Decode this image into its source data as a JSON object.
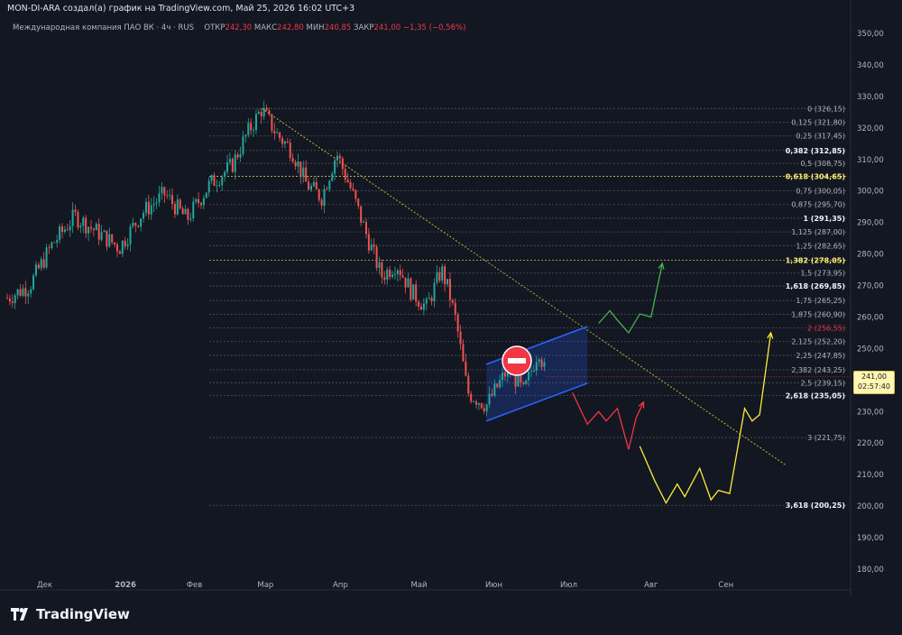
{
  "caption": "MON-DI-ARA создал(а) график на TradingView.com, Май 25, 2026 16:02 UTC+3",
  "legend": {
    "symbol": "Международная компания ПАО ВК · 4ч · RUS",
    "open_label": "ОТКР",
    "open": "242,30",
    "high_label": "МАКС",
    "high": "242,80",
    "low_label": "МИН",
    "low": "240,85",
    "close_label": "ЗАКР",
    "close": "241,00",
    "change": "−1,35 (−0,56%)"
  },
  "price_tag": {
    "price": "241,00",
    "timer": "02:57:40"
  },
  "brand": {
    "name": "TradingView"
  },
  "colors": {
    "background": "#131722",
    "up": "#26a69a",
    "down": "#ef5350",
    "fib": "#787b86",
    "fib_highlight": "#fff176",
    "channel": "#2962ff",
    "green_path": "#4caf50",
    "red_path": "#f23645",
    "yellow_path": "#ffeb3b",
    "trendline": "#b8b23a"
  },
  "chart_data": {
    "type": "candlestick",
    "y_axis": {
      "ticks": [
        "350,00",
        "340,00",
        "330,00",
        "320,00",
        "310,00",
        "300,00",
        "290,00",
        "280,00",
        "270,00",
        "260,00",
        "250,00",
        "240,00",
        "230,00",
        "220,00",
        "210,00",
        "200,00",
        "190,00",
        "180,00"
      ],
      "range": [
        175,
        352
      ]
    },
    "x_axis": {
      "ticks": [
        "Дек",
        "2026",
        "Фев",
        "Мар",
        "Апр",
        "Май",
        "Июн",
        "Июл",
        "Авг",
        "Сен"
      ]
    },
    "price_path": [
      {
        "t": 0.0,
        "p": 266
      },
      {
        "t": 0.3,
        "p": 270
      },
      {
        "t": 0.6,
        "p": 283
      },
      {
        "t": 0.9,
        "p": 292
      },
      {
        "t": 1.2,
        "p": 287
      },
      {
        "t": 1.5,
        "p": 282
      },
      {
        "t": 1.8,
        "p": 293
      },
      {
        "t": 2.1,
        "p": 299
      },
      {
        "t": 2.4,
        "p": 291
      },
      {
        "t": 2.7,
        "p": 302
      },
      {
        "t": 3.0,
        "p": 308
      },
      {
        "t": 3.2,
        "p": 318
      },
      {
        "t": 3.4,
        "p": 326
      },
      {
        "t": 3.6,
        "p": 318
      },
      {
        "t": 3.8,
        "p": 313
      },
      {
        "t": 4.0,
        "p": 302
      },
      {
        "t": 4.2,
        "p": 298
      },
      {
        "t": 4.4,
        "p": 312
      },
      {
        "t": 4.6,
        "p": 300
      },
      {
        "t": 4.8,
        "p": 286
      },
      {
        "t": 5.0,
        "p": 273
      },
      {
        "t": 5.2,
        "p": 277
      },
      {
        "t": 5.4,
        "p": 268
      },
      {
        "t": 5.6,
        "p": 263
      },
      {
        "t": 5.8,
        "p": 275
      },
      {
        "t": 5.9,
        "p": 268
      },
      {
        "t": 6.0,
        "p": 258
      },
      {
        "t": 6.15,
        "p": 236
      },
      {
        "t": 6.4,
        "p": 232
      },
      {
        "t": 6.7,
        "p": 244
      },
      {
        "t": 6.9,
        "p": 236
      },
      {
        "t": 7.1,
        "p": 250
      },
      {
        "t": 7.2,
        "p": 241
      }
    ],
    "fib_levels": [
      {
        "ratio": "0",
        "price": 326.15,
        "text": "0 (326,15)"
      },
      {
        "ratio": "0.125",
        "price": 321.8,
        "text": "0,125 (321,80)"
      },
      {
        "ratio": "0.25",
        "price": 317.45,
        "text": "0,25 (317,45)"
      },
      {
        "ratio": "0.382",
        "price": 312.85,
        "text": "0,382 (312,85)",
        "bold": true
      },
      {
        "ratio": "0.5",
        "price": 308.75,
        "text": "0,5 (308,75)"
      },
      {
        "ratio": "0.618",
        "price": 304.65,
        "text": "0,618 (304,65)",
        "highlight": true
      },
      {
        "ratio": "0.75",
        "price": 300.05,
        "text": "0,75 (300,05)"
      },
      {
        "ratio": "0.875",
        "price": 295.7,
        "text": "0,875 (295,70)"
      },
      {
        "ratio": "1",
        "price": 291.35,
        "text": "1 (291,35)",
        "bold": true
      },
      {
        "ratio": "1.125",
        "price": 287.0,
        "text": "1,125 (287,00)"
      },
      {
        "ratio": "1.25",
        "price": 282.65,
        "text": "1,25 (282,65)"
      },
      {
        "ratio": "1.382",
        "price": 278.05,
        "text": "1,382 (278,05)",
        "highlight": true
      },
      {
        "ratio": "1.5",
        "price": 273.95,
        "text": "1,5 (273,95)"
      },
      {
        "ratio": "1.618",
        "price": 269.85,
        "text": "1,618 (269,85)",
        "bold": true
      },
      {
        "ratio": "1.75",
        "price": 265.25,
        "text": "1,75 (265,25)"
      },
      {
        "ratio": "1.875",
        "price": 260.9,
        "text": "1,875 (260,90)"
      },
      {
        "ratio": "2",
        "price": 256.55,
        "text": "2 (256,55)",
        "red": true
      },
      {
        "ratio": "2.125",
        "price": 252.2,
        "text": "2,125 (252,20)"
      },
      {
        "ratio": "2.25",
        "price": 247.85,
        "text": "2,25 (247,85)"
      },
      {
        "ratio": "2.382",
        "price": 243.25,
        "text": "2,382 (243,25)"
      },
      {
        "ratio": "2.5",
        "price": 239.15,
        "text": "2,5 (239,15)"
      },
      {
        "ratio": "2.618",
        "price": 235.05,
        "text": "2,618 (235,05)",
        "bold": true
      },
      {
        "ratio": "3",
        "price": 221.75,
        "text": "3 (221,75)"
      },
      {
        "ratio": "3.618",
        "price": 200.25,
        "text": "3,618 (200,25)",
        "bold": true
      }
    ],
    "trendline": [
      {
        "t": 3.4,
        "p": 326.2
      },
      {
        "t": 10.4,
        "p": 213
      }
    ],
    "channel": {
      "top": [
        {
          "t": 6.4,
          "p": 245
        },
        {
          "t": 7.75,
          "p": 257
        }
      ],
      "bottom": [
        {
          "t": 6.4,
          "p": 227
        },
        {
          "t": 7.75,
          "p": 239
        }
      ]
    },
    "scenario_green": [
      {
        "t": 7.9,
        "p": 258
      },
      {
        "t": 8.05,
        "p": 262
      },
      {
        "t": 8.15,
        "p": 259
      },
      {
        "t": 8.3,
        "p": 255
      },
      {
        "t": 8.45,
        "p": 261
      },
      {
        "t": 8.6,
        "p": 260
      },
      {
        "t": 8.75,
        "p": 277
      }
    ],
    "scenario_red": [
      {
        "t": 7.55,
        "p": 236
      },
      {
        "t": 7.75,
        "p": 226
      },
      {
        "t": 7.9,
        "p": 230
      },
      {
        "t": 8.0,
        "p": 227
      },
      {
        "t": 8.15,
        "p": 231
      },
      {
        "t": 8.3,
        "p": 218
      },
      {
        "t": 8.4,
        "p": 228
      },
      {
        "t": 8.5,
        "p": 233
      }
    ],
    "scenario_yellow": [
      {
        "t": 8.45,
        "p": 219
      },
      {
        "t": 8.65,
        "p": 208
      },
      {
        "t": 8.8,
        "p": 201
      },
      {
        "t": 8.95,
        "p": 207
      },
      {
        "t": 9.05,
        "p": 203
      },
      {
        "t": 9.25,
        "p": 212
      },
      {
        "t": 9.4,
        "p": 202
      },
      {
        "t": 9.5,
        "p": 205
      },
      {
        "t": 9.65,
        "p": 204
      },
      {
        "t": 9.85,
        "p": 231
      },
      {
        "t": 9.95,
        "p": 227
      },
      {
        "t": 10.05,
        "p": 229
      },
      {
        "t": 10.2,
        "p": 255
      }
    ]
  }
}
